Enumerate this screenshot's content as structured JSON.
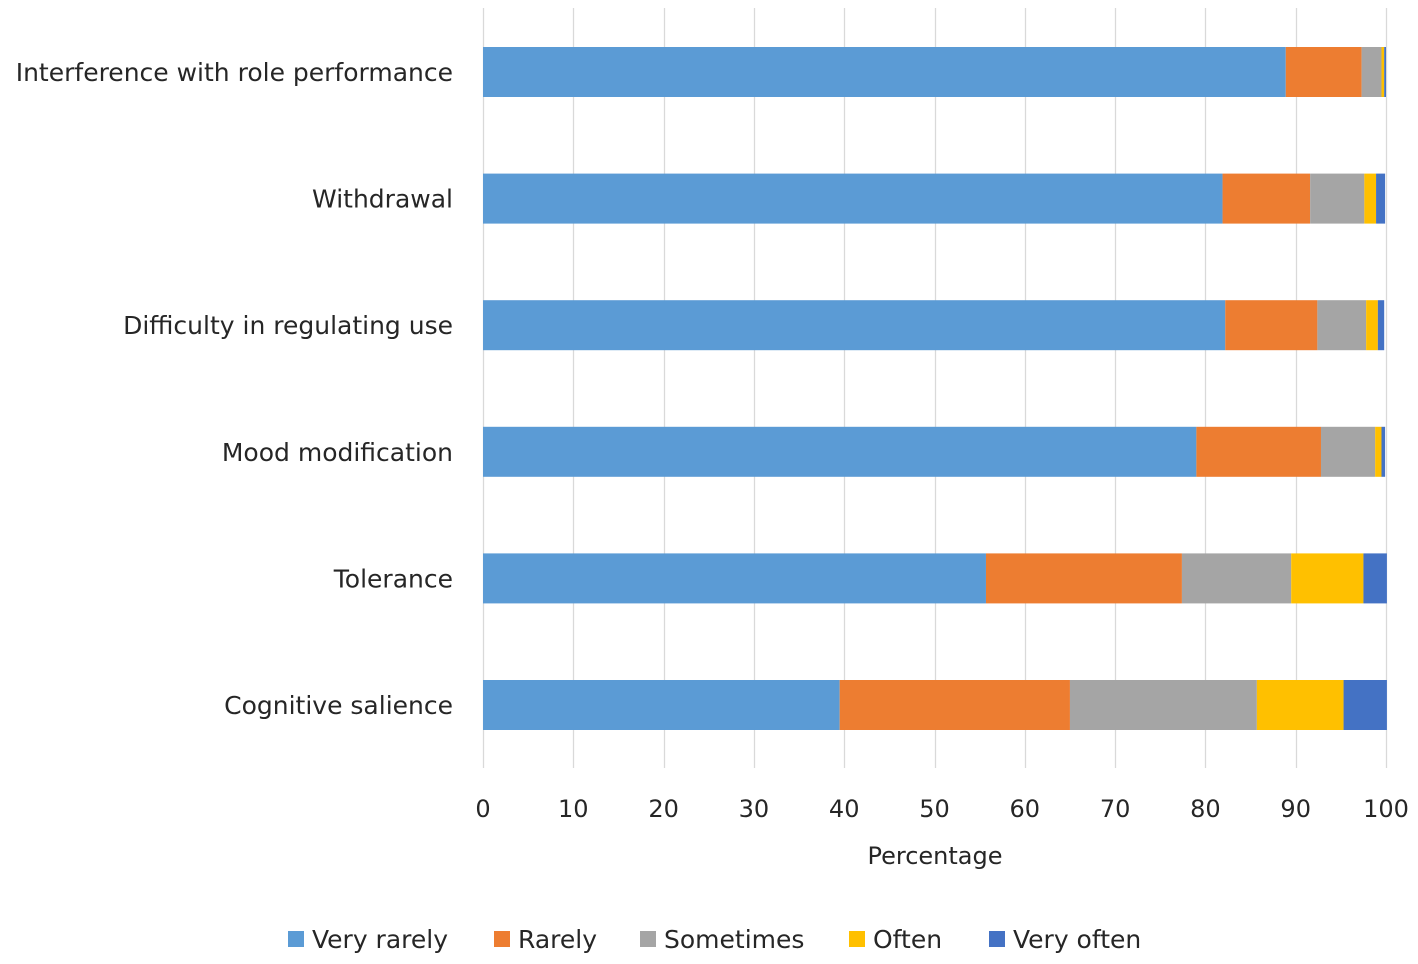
{
  "chart_data": {
    "type": "bar",
    "orientation": "horizontal",
    "stacked": true,
    "title": "",
    "xlabel": "Percentage",
    "ylabel": "",
    "xlim": [
      0,
      100
    ],
    "xticks": [
      0,
      10,
      20,
      30,
      40,
      50,
      60,
      70,
      80,
      90,
      100
    ],
    "grid": true,
    "legend_position": "bottom",
    "categories": [
      "Interference with role performance",
      "Withdrawal",
      "Difficulty in regulating use",
      "Mood modification",
      "Tolerance",
      "Cognitive salience"
    ],
    "series": [
      {
        "name": "Very rarely",
        "color": "#5b9bd5",
        "values": [
          88.9,
          81.9,
          82.2,
          79.0,
          55.7,
          39.5
        ]
      },
      {
        "name": "Rarely",
        "color": "#ed7d31",
        "values": [
          8.4,
          9.7,
          10.2,
          13.8,
          21.7,
          25.5
        ]
      },
      {
        "name": "Sometimes",
        "color": "#a5a5a5",
        "values": [
          2.2,
          6.0,
          5.4,
          6.0,
          12.1,
          20.7
        ]
      },
      {
        "name": "Often",
        "color": "#ffc000",
        "values": [
          0.3,
          1.3,
          1.3,
          0.7,
          8.0,
          9.6
        ]
      },
      {
        "name": "Very often",
        "color": "#4472c4",
        "values": [
          0.2,
          1.0,
          0.7,
          0.4,
          2.6,
          4.8
        ]
      }
    ]
  }
}
